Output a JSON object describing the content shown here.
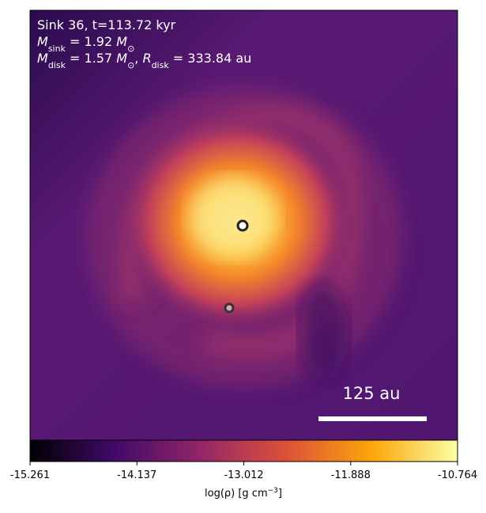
{
  "chart_data": {
    "type": "density_map",
    "annotations": [
      [
        {
          "t": "Sink 36, t=113.72 kyr"
        }
      ],
      [
        {
          "i": "M"
        },
        {
          "sub": "sink"
        },
        {
          "t": " = 1.92 "
        },
        {
          "i": "M"
        },
        {
          "sub": "⊙"
        }
      ],
      [
        {
          "i": "M"
        },
        {
          "sub": "disk"
        },
        {
          "t": " = 1.57 "
        },
        {
          "i": "M"
        },
        {
          "sub": "⊙"
        },
        {
          "t": ", "
        },
        {
          "i": "R"
        },
        {
          "sub": "disk"
        },
        {
          "t": " = 333.84 au"
        }
      ]
    ],
    "scale_bar_label": "125 au",
    "colorbar": {
      "label": [
        {
          "t": "log(ρ) [g cm"
        },
        {
          "sup": "−3"
        },
        {
          "t": "]"
        }
      ],
      "lim": [
        -15.261,
        -10.764
      ],
      "ticks": [
        -15.261,
        -14.137,
        -13.012,
        -11.888,
        -10.764
      ]
    }
  }
}
